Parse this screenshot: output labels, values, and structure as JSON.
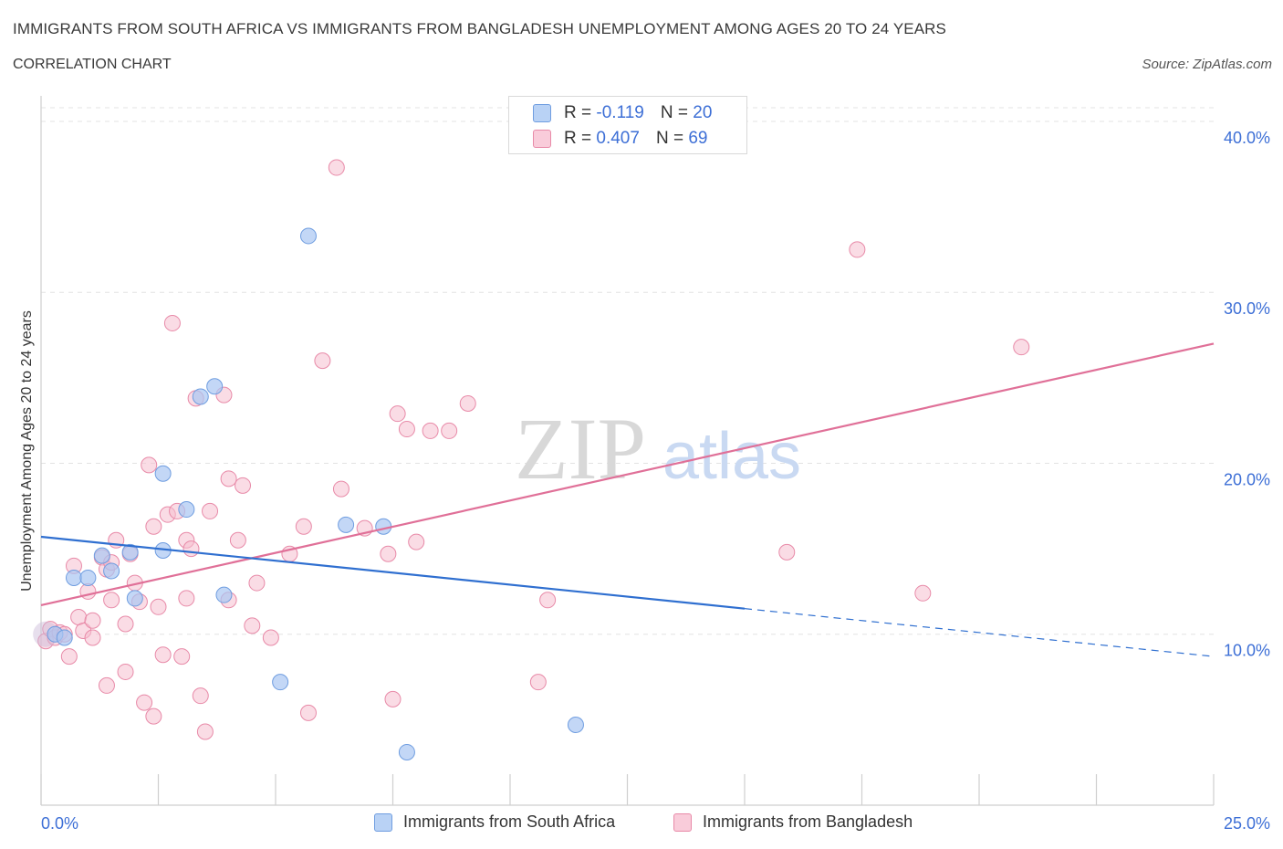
{
  "title": "IMMIGRANTS FROM SOUTH AFRICA VS IMMIGRANTS FROM BANGLADESH UNEMPLOYMENT AMONG AGES 20 TO 24 YEARS",
  "subtitle": "CORRELATION CHART",
  "source": "Source: ZipAtlas.com",
  "watermark": {
    "zip": "ZIP",
    "atlas": "atlas"
  },
  "legend": {
    "r_label": "R =",
    "n_label": "N =",
    "rows": [
      {
        "r": "-0.119",
        "n": "20"
      },
      {
        "r": "0.407",
        "n": "69"
      }
    ]
  },
  "colors": {
    "south_africa_fill": "#a9c6f2",
    "south_africa_stroke": "#6f9de0",
    "south_africa_line": "#2f6fd0",
    "bangladesh_fill": "#f6bfd0",
    "bangladesh_stroke": "#e88aa8",
    "bangladesh_line": "#e07098",
    "grid": "#e3e3e3",
    "tick_label": "#3d6fd6"
  },
  "chart_data": {
    "type": "scatter",
    "title": "IMMIGRANTS FROM SOUTH AFRICA VS IMMIGRANTS FROM BANGLADESH UNEMPLOYMENT AMONG AGES 20 TO 24 YEARS",
    "xlabel": "",
    "ylabel": "Unemployment Among Ages 20 to 24 years",
    "xlim": [
      0,
      25
    ],
    "ylim": [
      0,
      40.8
    ],
    "x_tick_labels": [
      "0.0%",
      "25.0%"
    ],
    "y_ticks": [
      10,
      20,
      30,
      40
    ],
    "y_tick_labels": [
      "10.0%",
      "20.0%",
      "30.0%",
      "40.0%"
    ],
    "grid": true,
    "series": [
      {
        "name": "Immigrants from South Africa",
        "r": -0.119,
        "n": 20,
        "points": [
          [
            0.3,
            10.0
          ],
          [
            0.7,
            13.3
          ],
          [
            1.0,
            13.3
          ],
          [
            1.3,
            14.6
          ],
          [
            1.5,
            13.7
          ],
          [
            1.9,
            14.8
          ],
          [
            2.0,
            12.1
          ],
          [
            2.6,
            14.9
          ],
          [
            2.6,
            19.4
          ],
          [
            3.1,
            17.3
          ],
          [
            3.4,
            23.9
          ],
          [
            3.7,
            24.5
          ],
          [
            3.9,
            12.3
          ],
          [
            5.1,
            7.2
          ],
          [
            5.7,
            33.3
          ],
          [
            6.5,
            16.4
          ],
          [
            7.3,
            16.3
          ],
          [
            7.8,
            3.1
          ],
          [
            11.4,
            4.7
          ],
          [
            0.5,
            9.8
          ]
        ],
        "trend": {
          "x": [
            0,
            15
          ],
          "y": [
            15.7,
            11.5
          ],
          "dashed_to": [
            25,
            8.7
          ]
        }
      },
      {
        "name": "Immigrants from Bangladesh",
        "r": 0.407,
        "n": 69,
        "points": [
          [
            0.1,
            9.6
          ],
          [
            0.2,
            10.3
          ],
          [
            0.3,
            9.8
          ],
          [
            0.4,
            10.1
          ],
          [
            0.5,
            10.0
          ],
          [
            0.6,
            8.7
          ],
          [
            0.7,
            14.0
          ],
          [
            0.8,
            11.0
          ],
          [
            0.9,
            10.2
          ],
          [
            1.0,
            12.5
          ],
          [
            1.1,
            9.8
          ],
          [
            1.1,
            10.8
          ],
          [
            1.3,
            14.5
          ],
          [
            1.4,
            13.8
          ],
          [
            1.4,
            7.0
          ],
          [
            1.5,
            14.2
          ],
          [
            1.5,
            12.0
          ],
          [
            1.6,
            15.5
          ],
          [
            1.8,
            10.6
          ],
          [
            1.8,
            7.8
          ],
          [
            1.9,
            14.7
          ],
          [
            2.0,
            13.0
          ],
          [
            2.1,
            11.9
          ],
          [
            2.2,
            6.0
          ],
          [
            2.3,
            19.9
          ],
          [
            2.4,
            16.3
          ],
          [
            2.4,
            5.2
          ],
          [
            2.5,
            11.6
          ],
          [
            2.6,
            8.8
          ],
          [
            2.7,
            17.0
          ],
          [
            2.8,
            28.2
          ],
          [
            2.9,
            17.2
          ],
          [
            3.0,
            8.7
          ],
          [
            3.1,
            15.5
          ],
          [
            3.1,
            12.1
          ],
          [
            3.2,
            15.0
          ],
          [
            3.3,
            23.8
          ],
          [
            3.4,
            6.4
          ],
          [
            3.5,
            4.3
          ],
          [
            3.6,
            17.2
          ],
          [
            3.9,
            24.0
          ],
          [
            4.0,
            19.1
          ],
          [
            4.0,
            12.0
          ],
          [
            4.2,
            15.5
          ],
          [
            4.3,
            18.7
          ],
          [
            4.5,
            10.5
          ],
          [
            4.6,
            13.0
          ],
          [
            4.9,
            9.8
          ],
          [
            5.3,
            14.7
          ],
          [
            5.6,
            16.3
          ],
          [
            5.7,
            5.4
          ],
          [
            6.0,
            26.0
          ],
          [
            6.3,
            37.3
          ],
          [
            6.4,
            18.5
          ],
          [
            6.9,
            16.2
          ],
          [
            7.4,
            14.7
          ],
          [
            7.5,
            6.2
          ],
          [
            7.6,
            22.9
          ],
          [
            7.8,
            22.0
          ],
          [
            8.0,
            15.4
          ],
          [
            8.3,
            21.9
          ],
          [
            9.1,
            23.5
          ],
          [
            10.6,
            7.2
          ],
          [
            10.8,
            12.0
          ],
          [
            15.9,
            14.8
          ],
          [
            17.4,
            32.5
          ],
          [
            18.8,
            12.4
          ],
          [
            20.9,
            26.8
          ],
          [
            8.7,
            21.9
          ]
        ],
        "trend": {
          "x": [
            0,
            25
          ],
          "y": [
            11.7,
            27.0
          ]
        }
      }
    ]
  }
}
